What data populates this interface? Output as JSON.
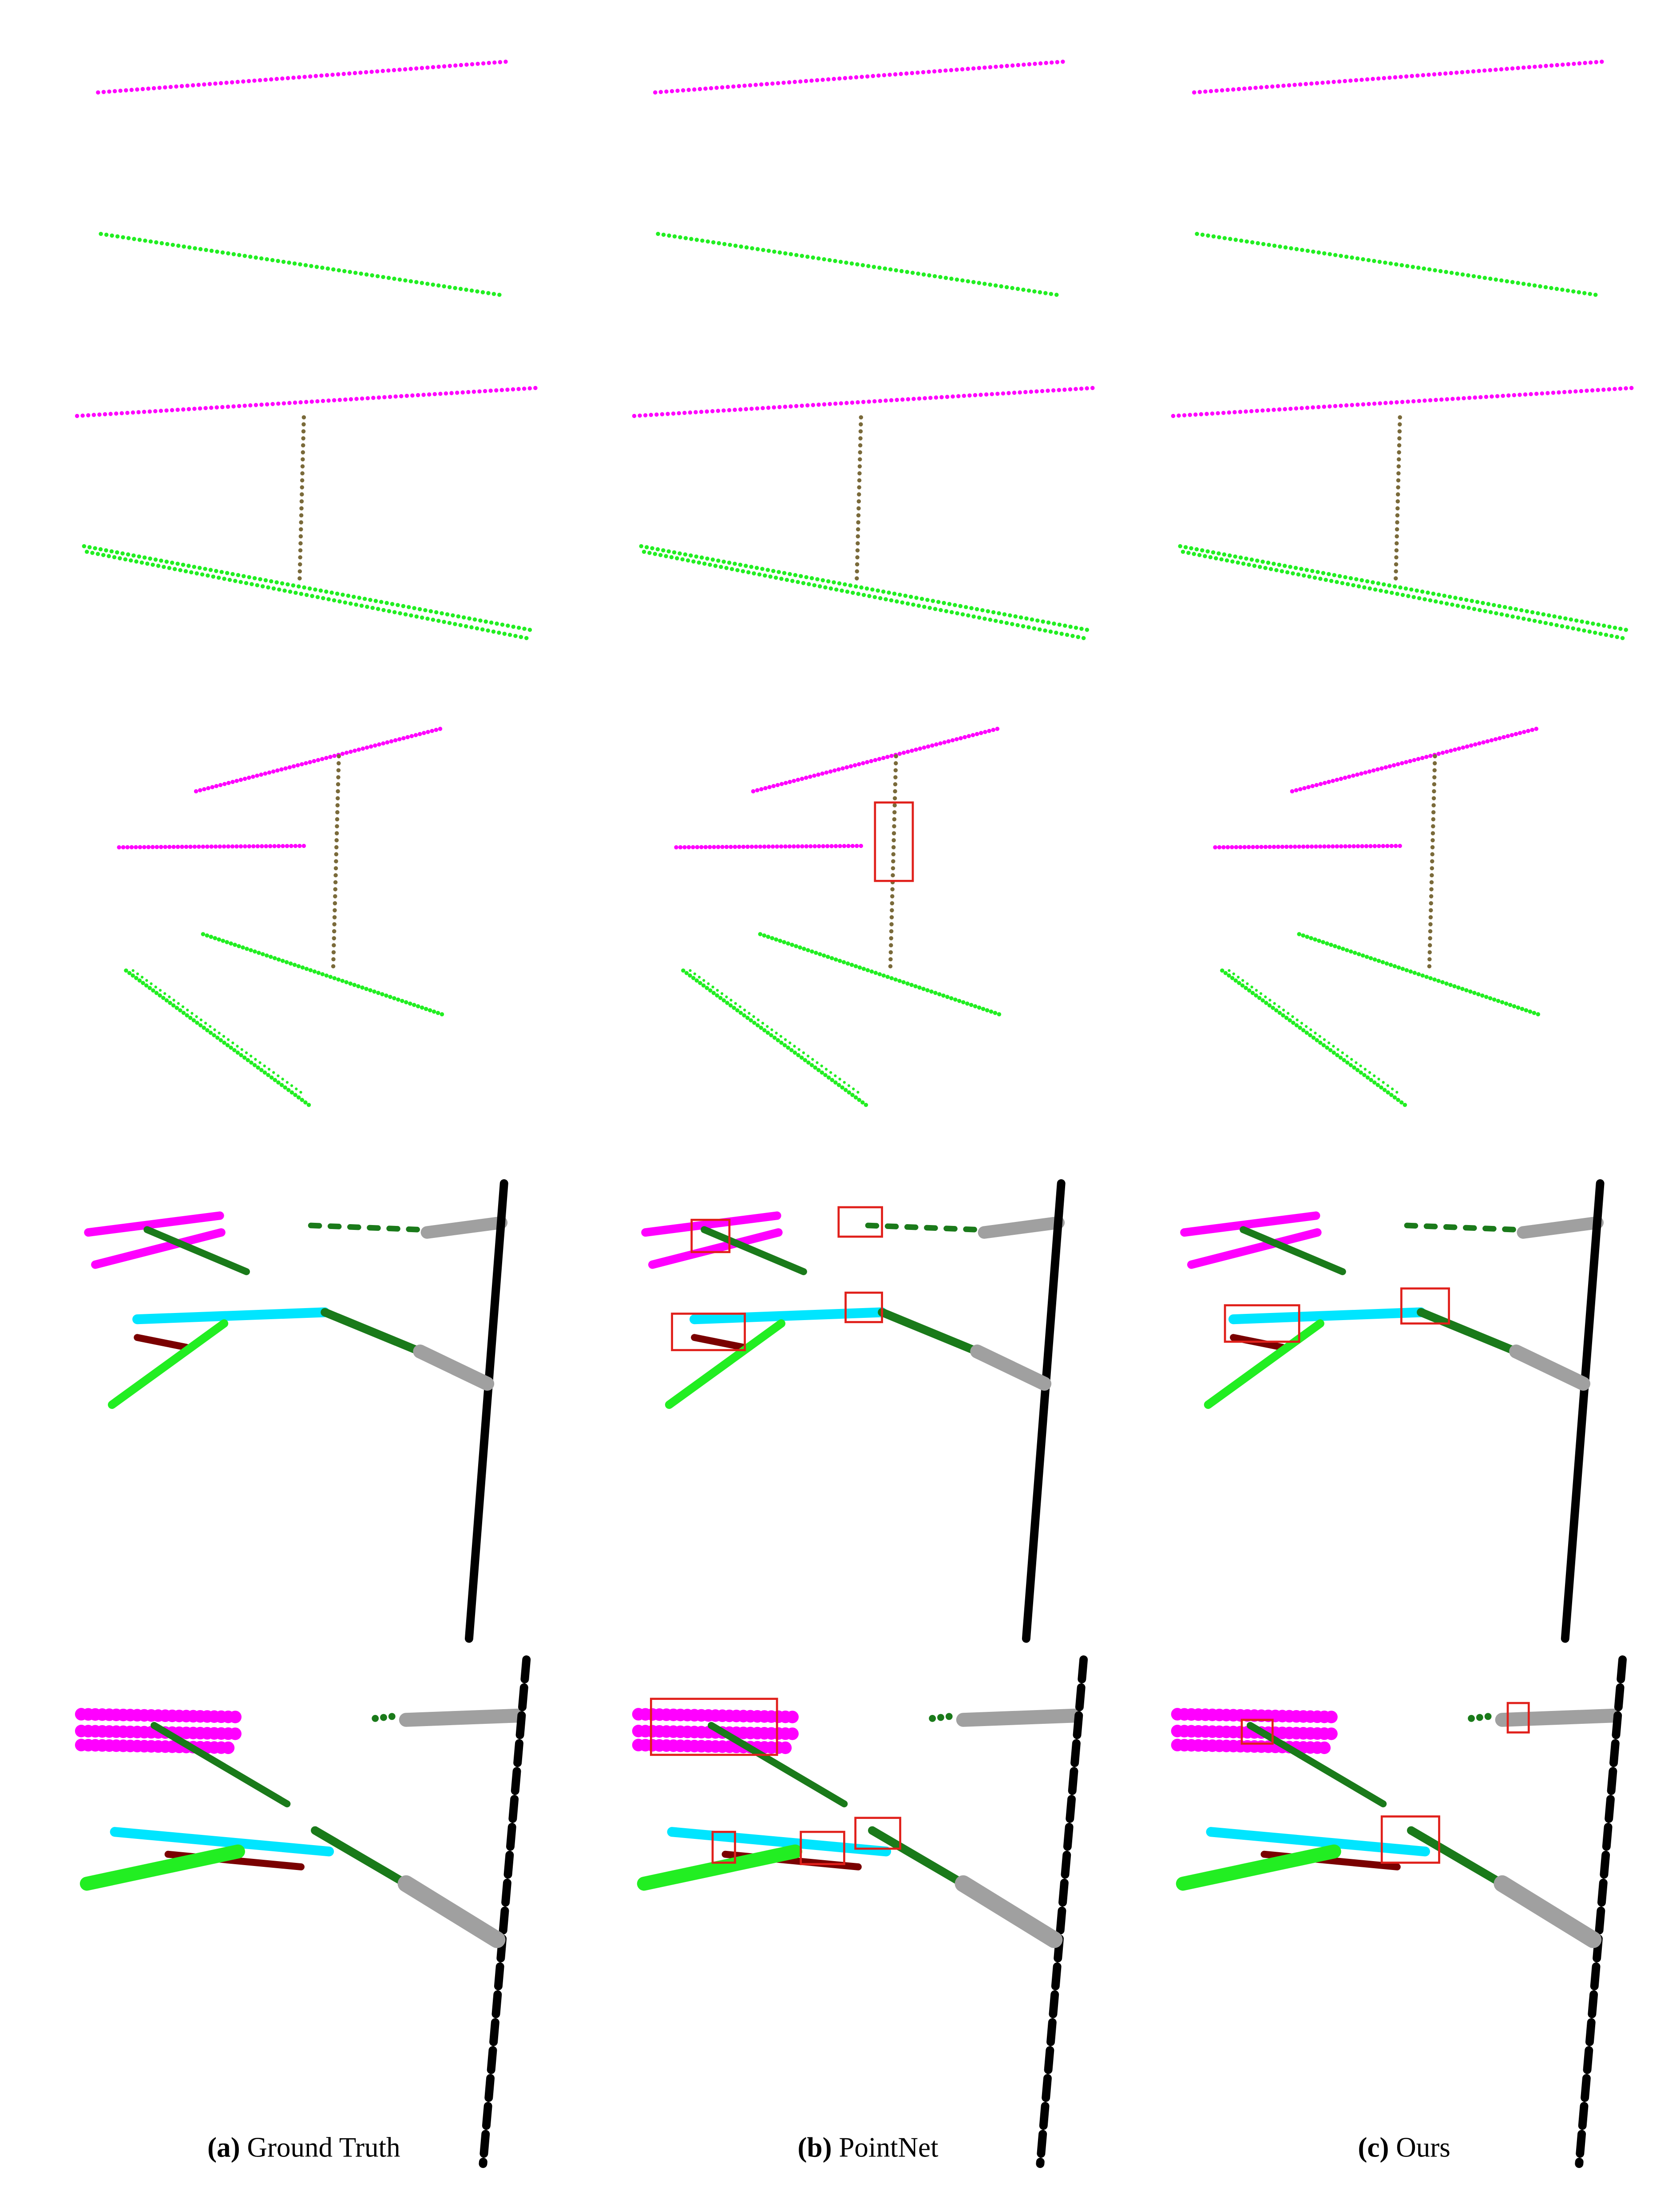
{
  "captions": [
    {
      "label": "(a)",
      "text": "Ground Truth"
    },
    {
      "label": "(b)",
      "text": "PointNet"
    },
    {
      "label": "(c)",
      "text": "Ours"
    }
  ]
}
